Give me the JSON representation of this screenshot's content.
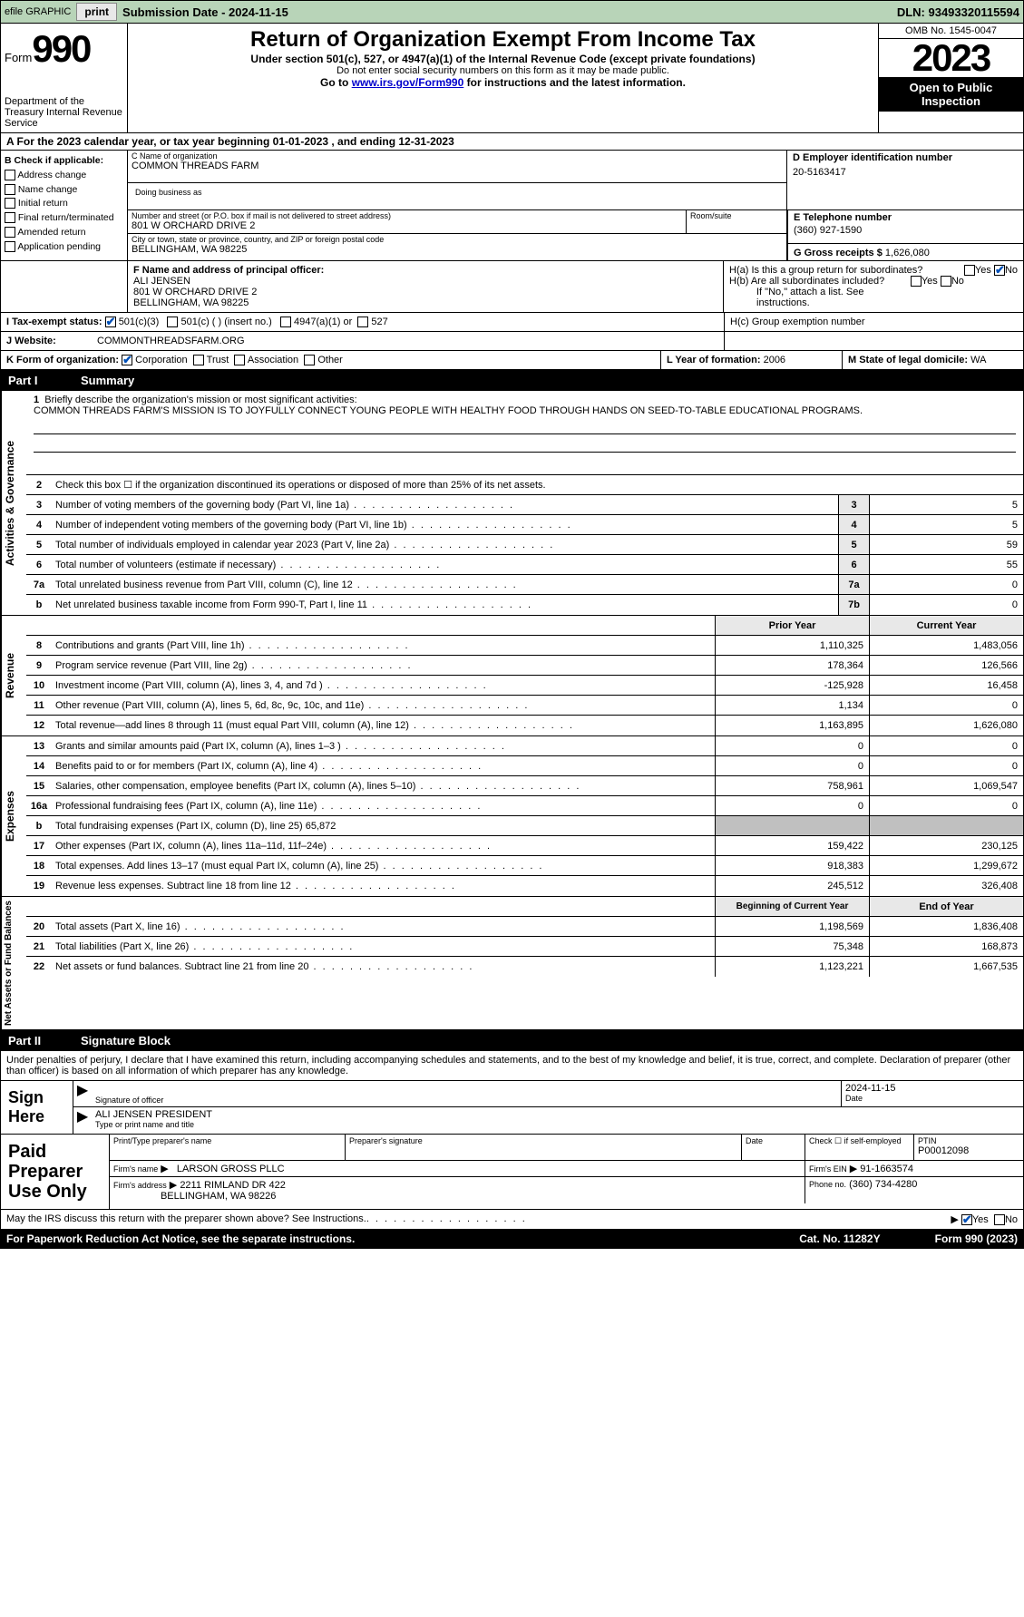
{
  "topbar": {
    "efile": "efile GRAPHIC",
    "print": "print",
    "submission": "Submission Date - 2024-11-15",
    "dln": "DLN: 93493320115594"
  },
  "header": {
    "form": "Form",
    "number": "990",
    "dept": "Department of the Treasury Internal Revenue Service",
    "title": "Return of Organization Exempt From Income Tax",
    "sub": "Under section 501(c), 527, or 4947(a)(1) of the Internal Revenue Code (except private foundations)",
    "ssn": "Do not enter social security numbers on this form as it may be made public.",
    "goto_pre": "Go to ",
    "goto_link": "www.irs.gov/Form990",
    "goto_post": " for instructions and the latest information.",
    "omb": "OMB No. 1545-0047",
    "year": "2023",
    "inspect": "Open to Public Inspection"
  },
  "rowA": "A  For the 2023 calendar year, or tax year beginning 01-01-2023   , and ending 12-31-2023",
  "B": {
    "label": "B Check if applicable:",
    "opts": [
      "Address change",
      "Name change",
      "Initial return",
      "Final return/terminated",
      "Amended return",
      "Application pending"
    ]
  },
  "C": {
    "name_label": "C Name of organization",
    "name": "COMMON THREADS FARM",
    "dba_label": "Doing business as",
    "street_label": "Number and street (or P.O. box if mail is not delivered to street address)",
    "street": "801 W ORCHARD DRIVE 2",
    "room_label": "Room/suite",
    "city_label": "City or town, state or province, country, and ZIP or foreign postal code",
    "city": "BELLINGHAM, WA  98225"
  },
  "D": {
    "label": "D Employer identification number",
    "val": "20-5163417"
  },
  "E": {
    "label": "E Telephone number",
    "val": "(360) 927-1590"
  },
  "G": {
    "label": "G Gross receipts $",
    "val": "1,626,080"
  },
  "F": {
    "label": "F  Name and address of principal officer:",
    "name": "ALI JENSEN",
    "addr1": "801 W ORCHARD DRIVE 2",
    "addr2": "BELLINGHAM, WA  98225"
  },
  "H": {
    "a": "H(a)  Is this a group return for subordinates?",
    "b": "H(b)  Are all subordinates included?",
    "b_note": "If \"No,\" attach a list. See instructions.",
    "c": "H(c)  Group exemption number",
    "yes": "Yes",
    "no": "No"
  },
  "I": {
    "label": "I    Tax-exempt status:",
    "c3": "501(c)(3)",
    "c_ins": "501(c) (  ) (insert no.)",
    "a1": "4947(a)(1) or",
    "s527": "527"
  },
  "J": {
    "label": "J   Website:",
    "val": "COMMONTHREADSFARM.ORG"
  },
  "K": {
    "label": "K Form of organization:",
    "corp": "Corporation",
    "trust": "Trust",
    "assoc": "Association",
    "other": "Other"
  },
  "L": {
    "label": "L Year of formation:",
    "val": "2006"
  },
  "M": {
    "label": "M State of legal domicile:",
    "val": "WA"
  },
  "partI": {
    "num": "Part I",
    "title": "Summary"
  },
  "mission": {
    "q": "Briefly describe the organization's mission or most significant activities:",
    "text": "COMMON THREADS FARM'S MISSION IS TO JOYFULLY CONNECT YOUNG PEOPLE WITH HEALTHY FOOD THROUGH HANDS ON SEED-TO-TABLE EDUCATIONAL PROGRAMS."
  },
  "lines_gov": [
    {
      "n": "2",
      "d": "Check this box ☐  if the organization discontinued its operations or disposed of more than 25% of its net assets."
    },
    {
      "n": "3",
      "d": "Number of voting members of the governing body (Part VI, line 1a)",
      "box": "3",
      "v": "5"
    },
    {
      "n": "4",
      "d": "Number of independent voting members of the governing body (Part VI, line 1b)",
      "box": "4",
      "v": "5"
    },
    {
      "n": "5",
      "d": "Total number of individuals employed in calendar year 2023 (Part V, line 2a)",
      "box": "5",
      "v": "59"
    },
    {
      "n": "6",
      "d": "Total number of volunteers (estimate if necessary)",
      "box": "6",
      "v": "55"
    },
    {
      "n": "7a",
      "d": "Total unrelated business revenue from Part VIII, column (C), line 12",
      "box": "7a",
      "v": "0"
    },
    {
      "n": "b",
      "d": "Net unrelated business taxable income from Form 990-T, Part I, line 11",
      "box": "7b",
      "v": "0"
    }
  ],
  "yearhdr": {
    "prior": "Prior Year",
    "current": "Current Year"
  },
  "lines_rev": [
    {
      "n": "8",
      "d": "Contributions and grants (Part VIII, line 1h)",
      "p": "1,110,325",
      "c": "1,483,056"
    },
    {
      "n": "9",
      "d": "Program service revenue (Part VIII, line 2g)",
      "p": "178,364",
      "c": "126,566"
    },
    {
      "n": "10",
      "d": "Investment income (Part VIII, column (A), lines 3, 4, and 7d )",
      "p": "-125,928",
      "c": "16,458"
    },
    {
      "n": "11",
      "d": "Other revenue (Part VIII, column (A), lines 5, 6d, 8c, 9c, 10c, and 11e)",
      "p": "1,134",
      "c": "0"
    },
    {
      "n": "12",
      "d": "Total revenue—add lines 8 through 11 (must equal Part VIII, column (A), line 12)",
      "p": "1,163,895",
      "c": "1,626,080"
    }
  ],
  "lines_exp": [
    {
      "n": "13",
      "d": "Grants and similar amounts paid (Part IX, column (A), lines 1–3 )",
      "p": "0",
      "c": "0"
    },
    {
      "n": "14",
      "d": "Benefits paid to or for members (Part IX, column (A), line 4)",
      "p": "0",
      "c": "0"
    },
    {
      "n": "15",
      "d": "Salaries, other compensation, employee benefits (Part IX, column (A), lines 5–10)",
      "p": "758,961",
      "c": "1,069,547"
    },
    {
      "n": "16a",
      "d": "Professional fundraising fees (Part IX, column (A), line 11e)",
      "p": "0",
      "c": "0"
    },
    {
      "n": "b",
      "d": "Total fundraising expenses (Part IX, column (D), line 25) 65,872",
      "gray": true
    },
    {
      "n": "17",
      "d": "Other expenses (Part IX, column (A), lines 11a–11d, 11f–24e)",
      "p": "159,422",
      "c": "230,125"
    },
    {
      "n": "18",
      "d": "Total expenses. Add lines 13–17 (must equal Part IX, column (A), line 25)",
      "p": "918,383",
      "c": "1,299,672"
    },
    {
      "n": "19",
      "d": "Revenue less expenses. Subtract line 18 from line 12",
      "p": "245,512",
      "c": "326,408"
    }
  ],
  "nethdr": {
    "beg": "Beginning of Current Year",
    "end": "End of Year"
  },
  "lines_net": [
    {
      "n": "20",
      "d": "Total assets (Part X, line 16)",
      "p": "1,198,569",
      "c": "1,836,408"
    },
    {
      "n": "21",
      "d": "Total liabilities (Part X, line 26)",
      "p": "75,348",
      "c": "168,873"
    },
    {
      "n": "22",
      "d": "Net assets or fund balances. Subtract line 21 from line 20",
      "p": "1,123,221",
      "c": "1,667,535"
    }
  ],
  "partII": {
    "num": "Part II",
    "title": "Signature Block"
  },
  "perjury": "Under penalties of perjury, I declare that I have examined this return, including accompanying schedules and statements, and to the best of my knowledge and belief, it is true, correct, and complete. Declaration of preparer (other than officer) is based on all information of which preparer has any knowledge.",
  "sign": {
    "here": "Sign Here",
    "sigoff_label": "Signature of officer",
    "sigoff_val": "ALI JENSEN  PRESIDENT",
    "typename": "Type or print name and title",
    "date": "Date",
    "dateval": "2024-11-15"
  },
  "paid": {
    "label": "Paid Preparer Use Only",
    "pname": "Print/Type preparer's name",
    "psig": "Preparer's signature",
    "pdate": "Date",
    "selfemp": "Check ☐ if self-employed",
    "ptin_l": "PTIN",
    "ptin": "P00012098",
    "firmname_l": "Firm's name",
    "firmname": "LARSON GROSS PLLC",
    "firmein_l": "Firm's EIN",
    "firmein": "91-1663574",
    "firmaddr_l": "Firm's address",
    "firmaddr": "2211 RIMLAND DR 422",
    "firmaddr2": "BELLINGHAM, WA  98226",
    "phone_l": "Phone no.",
    "phone": "(360) 734-4280"
  },
  "discuss": "May the IRS discuss this return with the preparer shown above? See Instructions.",
  "footer": {
    "pra": "For Paperwork Reduction Act Notice, see the separate instructions.",
    "cat": "Cat. No. 11282Y",
    "form": "Form 990 (2023)"
  },
  "vlabels": {
    "gov": "Activities & Governance",
    "rev": "Revenue",
    "exp": "Expenses",
    "net": "Net Assets or Fund Balances"
  }
}
